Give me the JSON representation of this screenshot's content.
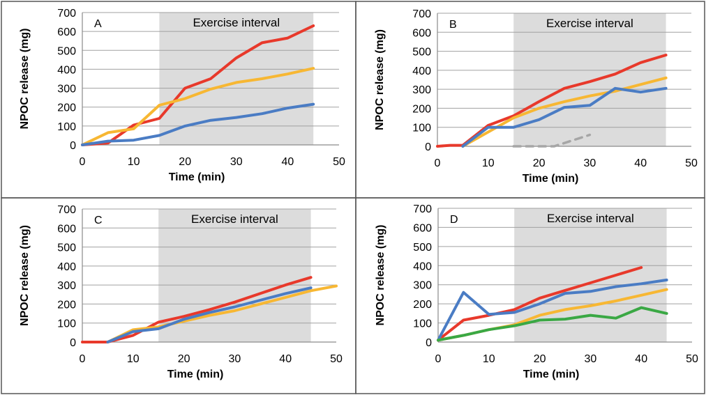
{
  "colors": {
    "red": "#e8392b",
    "orange": "#f7b733",
    "blue": "#4a7cc4",
    "green": "#3aa844",
    "grey": "#a6a6a6",
    "shade": "#dcdcdc",
    "grid": "#a0a0a0",
    "axis": "#8a8a8a",
    "border": "#555555"
  },
  "chart_data": [
    {
      "type": "line",
      "panel": "A",
      "shade_label": "Exercise interval",
      "shade_range": [
        15,
        45
      ],
      "xlabel": "Time (min)",
      "ylabel": "NPOC release (mg)",
      "xlim": [
        0,
        50
      ],
      "ylim": [
        0,
        700
      ],
      "xticks": [
        "0",
        "10",
        "20",
        "30",
        "40",
        "50"
      ],
      "yticks": [
        "0",
        "100",
        "200",
        "300",
        "400",
        "500",
        "600",
        "700"
      ],
      "grid": true,
      "series": [
        {
          "color": "red",
          "dash": false,
          "x": [
            0,
            5,
            10,
            15,
            20,
            25,
            30,
            35,
            40,
            45
          ],
          "y": [
            0,
            10,
            105,
            140,
            300,
            350,
            460,
            540,
            565,
            630
          ]
        },
        {
          "color": "orange",
          "dash": false,
          "x": [
            0,
            5,
            10,
            15,
            20,
            25,
            30,
            35,
            40,
            45
          ],
          "y": [
            0,
            65,
            85,
            210,
            245,
            295,
            330,
            350,
            375,
            405
          ]
        },
        {
          "color": "blue",
          "dash": false,
          "x": [
            0,
            5,
            10,
            15,
            20,
            25,
            30,
            35,
            40,
            45
          ],
          "y": [
            0,
            20,
            25,
            50,
            100,
            130,
            145,
            165,
            195,
            215
          ]
        }
      ]
    },
    {
      "type": "line",
      "panel": "B",
      "shade_label": "Exercise interval",
      "shade_range": [
        15,
        45
      ],
      "xlabel": "Time (min)",
      "ylabel": "NPOC release (mg)",
      "xlim": [
        0,
        50
      ],
      "ylim": [
        0,
        700
      ],
      "xticks": [
        "0",
        "10",
        "20",
        "30",
        "40",
        "50"
      ],
      "yticks": [
        "0",
        "100",
        "200",
        "300",
        "400",
        "500",
        "600",
        "700"
      ],
      "grid": true,
      "series": [
        {
          "color": "red",
          "dash": false,
          "x": [
            0,
            2.5,
            5,
            10,
            15,
            20,
            25,
            30,
            35,
            40,
            45
          ],
          "y": [
            0,
            5,
            5,
            110,
            160,
            235,
            305,
            340,
            380,
            440,
            480
          ]
        },
        {
          "color": "orange",
          "dash": false,
          "x": [
            5,
            10,
            15,
            20,
            25,
            30,
            35,
            40,
            45
          ],
          "y": [
            0,
            75,
            150,
            200,
            235,
            265,
            290,
            325,
            360
          ]
        },
        {
          "color": "blue",
          "dash": false,
          "x": [
            5,
            10,
            15,
            20,
            25,
            30,
            35,
            40,
            45
          ],
          "y": [
            0,
            100,
            100,
            140,
            205,
            215,
            305,
            285,
            305
          ]
        },
        {
          "color": "grey",
          "dash": true,
          "x": [
            15,
            23,
            30
          ],
          "y": [
            0,
            0,
            60
          ]
        }
      ]
    },
    {
      "type": "line",
      "panel": "C",
      "shade_label": "Exercise interval",
      "shade_range": [
        15,
        45
      ],
      "xlabel": "Time (min)",
      "ylabel": "NPOC release (mg)",
      "xlim": [
        0,
        50
      ],
      "ylim": [
        0,
        700
      ],
      "xticks": [
        "0",
        "10",
        "20",
        "30",
        "40",
        "50"
      ],
      "yticks": [
        "0",
        "100",
        "200",
        "300",
        "400",
        "500",
        "600",
        "700"
      ],
      "grid": true,
      "series": [
        {
          "color": "red",
          "dash": false,
          "x": [
            0,
            5,
            10,
            15,
            20,
            25,
            30,
            35,
            40,
            45
          ],
          "y": [
            0,
            0,
            35,
            105,
            135,
            170,
            210,
            255,
            300,
            340
          ]
        },
        {
          "color": "orange",
          "dash": false,
          "x": [
            5,
            10,
            15,
            20,
            25,
            30,
            35,
            40,
            45,
            50
          ],
          "y": [
            0,
            65,
            80,
            110,
            140,
            165,
            200,
            235,
            270,
            295
          ]
        },
        {
          "color": "blue",
          "dash": false,
          "x": [
            5,
            10,
            15,
            20,
            25,
            30,
            35,
            40,
            45
          ],
          "y": [
            0,
            55,
            70,
            120,
            155,
            185,
            220,
            255,
            285
          ]
        }
      ]
    },
    {
      "type": "line",
      "panel": "D",
      "shade_label": "Exercise interval",
      "shade_range": [
        15,
        45
      ],
      "xlabel": "Time (min)",
      "ylabel": "NPOC release (mg)",
      "xlim": [
        0,
        50
      ],
      "ylim": [
        0,
        700
      ],
      "xticks": [
        "0",
        "10",
        "20",
        "30",
        "40",
        "50"
      ],
      "yticks": [
        "0",
        "100",
        "200",
        "300",
        "400",
        "500",
        "600",
        "700"
      ],
      "grid": true,
      "series": [
        {
          "color": "red",
          "dash": false,
          "x": [
            0,
            5,
            10,
            15,
            20,
            25,
            30,
            35,
            40
          ],
          "y": [
            10,
            115,
            140,
            170,
            230,
            270,
            310,
            350,
            390
          ]
        },
        {
          "color": "blue",
          "dash": false,
          "x": [
            0,
            5,
            10,
            15,
            20,
            25,
            30,
            35,
            40,
            45
          ],
          "y": [
            10,
            260,
            145,
            155,
            200,
            255,
            265,
            290,
            305,
            325
          ]
        },
        {
          "color": "orange",
          "dash": false,
          "x": [
            0,
            5,
            10,
            15,
            20,
            25,
            30,
            35,
            40,
            45
          ],
          "y": [
            10,
            35,
            65,
            90,
            140,
            170,
            190,
            215,
            245,
            275
          ]
        },
        {
          "color": "green",
          "dash": false,
          "x": [
            0,
            5,
            10,
            15,
            20,
            25,
            30,
            35,
            40,
            45
          ],
          "y": [
            10,
            35,
            65,
            85,
            115,
            120,
            140,
            125,
            180,
            150
          ]
        }
      ]
    }
  ]
}
